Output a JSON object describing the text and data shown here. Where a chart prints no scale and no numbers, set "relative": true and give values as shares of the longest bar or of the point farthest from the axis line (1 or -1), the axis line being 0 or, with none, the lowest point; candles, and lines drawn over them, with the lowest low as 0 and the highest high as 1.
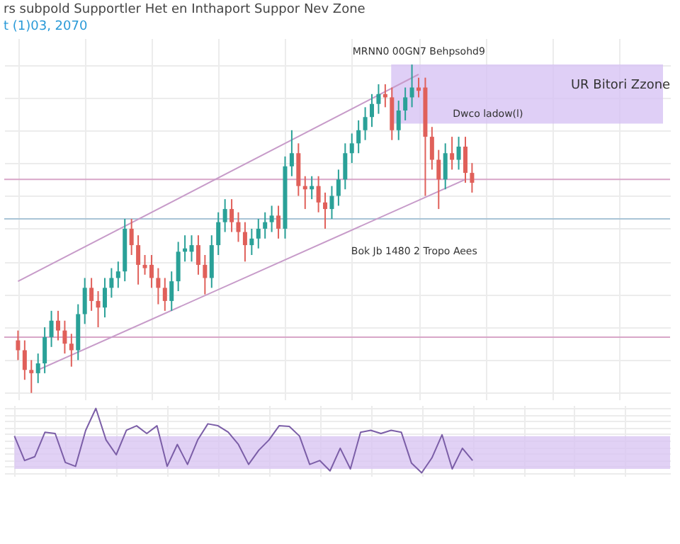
{
  "chart_data": [
    {
      "type": "candlestick",
      "title": "rs subpold Supportler Het en Inthaport Suppor Nev Zone",
      "subtitle": "t (1)03, 2070",
      "relative": true,
      "tick_labels": false,
      "grid": true,
      "categories": [
        null,
        null,
        null,
        null,
        null,
        null,
        null,
        null,
        null,
        null,
        null,
        null,
        null,
        null,
        null,
        null,
        null,
        null,
        null,
        null,
        null,
        null,
        null,
        null,
        null,
        null,
        null,
        null,
        null,
        null,
        null,
        null,
        null,
        null,
        null,
        null,
        null,
        null,
        null,
        null,
        null,
        null,
        null,
        null,
        null,
        null,
        null,
        null,
        null,
        null,
        null,
        null,
        null,
        null,
        null,
        null,
        null,
        null,
        null,
        null,
        null,
        null,
        null,
        null,
        null,
        null,
        null,
        null,
        null
      ],
      "ohlc": [
        [
          0.16,
          0.19,
          0.1,
          0.13
        ],
        [
          0.13,
          0.16,
          0.04,
          0.07
        ],
        [
          0.07,
          0.1,
          0,
          0.06
        ],
        [
          0.06,
          0.12,
          0.03,
          0.09
        ],
        [
          0.09,
          0.2,
          0.06,
          0.17
        ],
        [
          0.17,
          0.25,
          0.14,
          0.22
        ],
        [
          0.22,
          0.25,
          0.16,
          0.19
        ],
        [
          0.19,
          0.22,
          0.12,
          0.15
        ],
        [
          0.15,
          0.18,
          0.08,
          0.13
        ],
        [
          0.13,
          0.27,
          0.1,
          0.24
        ],
        [
          0.24,
          0.35,
          0.21,
          0.32
        ],
        [
          0.32,
          0.35,
          0.25,
          0.28
        ],
        [
          0.28,
          0.31,
          0.2,
          0.26
        ],
        [
          0.26,
          0.35,
          0.23,
          0.32
        ],
        [
          0.32,
          0.38,
          0.29,
          0.35
        ],
        [
          0.35,
          0.4,
          0.32,
          0.37
        ],
        [
          0.37,
          0.53,
          0.34,
          0.5
        ],
        [
          0.5,
          0.53,
          0.42,
          0.45
        ],
        [
          0.45,
          0.48,
          0.33,
          0.39
        ],
        [
          0.39,
          0.42,
          0.36,
          0.38
        ],
        [
          0.39,
          0.42,
          0.32,
          0.35
        ],
        [
          0.35,
          0.38,
          0.27,
          0.32
        ],
        [
          0.32,
          0.35,
          0.25,
          0.28
        ],
        [
          0.28,
          0.37,
          0.25,
          0.34
        ],
        [
          0.34,
          0.46,
          0.31,
          0.43
        ],
        [
          0.43,
          0.48,
          0.4,
          0.44
        ],
        [
          0.43,
          0.48,
          0.4,
          0.45
        ],
        [
          0.45,
          0.48,
          0.36,
          0.39
        ],
        [
          0.39,
          0.42,
          0.3,
          0.35
        ],
        [
          0.35,
          0.48,
          0.32,
          0.45
        ],
        [
          0.45,
          0.55,
          0.42,
          0.52
        ],
        [
          0.52,
          0.59,
          0.49,
          0.56
        ],
        [
          0.56,
          0.59,
          0.49,
          0.52
        ],
        [
          0.52,
          0.55,
          0.46,
          0.49
        ],
        [
          0.49,
          0.52,
          0.4,
          0.45
        ],
        [
          0.45,
          0.5,
          0.42,
          0.47
        ],
        [
          0.47,
          0.53,
          0.44,
          0.5
        ],
        [
          0.5,
          0.55,
          0.47,
          0.52
        ],
        [
          0.52,
          0.57,
          0.49,
          0.54
        ],
        [
          0.54,
          0.57,
          0.47,
          0.5
        ],
        [
          0.5,
          0.72,
          0.47,
          0.69
        ],
        [
          0.69,
          0.8,
          0.66,
          0.73
        ],
        [
          0.73,
          0.76,
          0.6,
          0.63
        ],
        [
          0.63,
          0.66,
          0.56,
          0.62
        ],
        [
          0.62,
          0.66,
          0.59,
          0.63
        ],
        [
          0.63,
          0.66,
          0.55,
          0.58
        ],
        [
          0.58,
          0.61,
          0.5,
          0.56
        ],
        [
          0.56,
          0.63,
          0.53,
          0.6
        ],
        [
          0.6,
          0.68,
          0.57,
          0.65
        ],
        [
          0.65,
          0.76,
          0.62,
          0.73
        ],
        [
          0.73,
          0.79,
          0.7,
          0.76
        ],
        [
          0.76,
          0.83,
          0.73,
          0.8
        ],
        [
          0.8,
          0.87,
          0.77,
          0.84
        ],
        [
          0.84,
          0.91,
          0.81,
          0.88
        ],
        [
          0.88,
          0.94,
          0.85,
          0.91
        ],
        [
          0.91,
          0.94,
          0.87,
          0.9
        ],
        [
          0.9,
          0.93,
          0.77,
          0.8
        ],
        [
          0.8,
          0.89,
          0.77,
          0.86
        ],
        [
          0.86,
          0.93,
          0.83,
          0.9
        ],
        [
          0.9,
          1,
          0.87,
          0.93
        ],
        [
          0.93,
          0.96,
          0.9,
          0.92
        ],
        [
          0.93,
          0.96,
          0.6,
          0.78
        ],
        [
          0.78,
          0.81,
          0.68,
          0.71
        ],
        [
          0.71,
          0.74,
          0.56,
          0.65
        ],
        [
          0.65,
          0.76,
          0.62,
          0.73
        ],
        [
          0.73,
          0.78,
          0.68,
          0.71
        ],
        [
          0.71,
          0.78,
          0.68,
          0.75
        ],
        [
          0.75,
          0.78,
          0.64,
          0.67
        ],
        [
          0.67,
          0.7,
          0.61,
          0.64
        ]
      ],
      "series": [
        {
          "type": "line",
          "color": "#c79bc9",
          "values": [
            0.34,
            null,
            null,
            null,
            null,
            null,
            null,
            null,
            null,
            null,
            null,
            null,
            null,
            null,
            null,
            null,
            null,
            null,
            null,
            null,
            null,
            null,
            null,
            null,
            null,
            null,
            null,
            null,
            null,
            null,
            null,
            null,
            null,
            null,
            null,
            null,
            null,
            null,
            null,
            null,
            null,
            null,
            null,
            null,
            null,
            null,
            null,
            null,
            null,
            null,
            null,
            null,
            null,
            null,
            null,
            null,
            null,
            null,
            null,
            null,
            0.97,
            null,
            null,
            null,
            null,
            null,
            null,
            null,
            null
          ]
        },
        {
          "type": "line",
          "color": "#c79bc9",
          "values": [
            null,
            null,
            null,
            0.07,
            null,
            null,
            null,
            null,
            null,
            null,
            null,
            null,
            null,
            null,
            null,
            null,
            null,
            null,
            null,
            null,
            null,
            null,
            null,
            null,
            null,
            null,
            null,
            null,
            null,
            null,
            null,
            null,
            null,
            null,
            null,
            null,
            null,
            null,
            null,
            null,
            null,
            null,
            null,
            null,
            null,
            null,
            null,
            null,
            null,
            null,
            null,
            null,
            null,
            null,
            null,
            null,
            null,
            null,
            null,
            null,
            null,
            null,
            null,
            null,
            null,
            null,
            null,
            0.65,
            null
          ]
        }
      ],
      "ref_lines": [
        {
          "axis": "y",
          "value": 0.65,
          "color": "#d8a6c8"
        },
        {
          "axis": "y",
          "value": 0.53,
          "color": "#a9c4d6"
        },
        {
          "axis": "y",
          "value": 0.17,
          "color": "#d8a6c8"
        }
      ],
      "bands": [
        {
          "axis": "y",
          "from": 0.82,
          "to": 1,
          "color": "#d7c3f4"
        }
      ],
      "annotations": [
        "MRNN0 00GN7 Behpsohd9",
        "UR Bitori Zzone",
        "Dwco ladow(l)",
        "Bok Jb 1480 2 Tropo Aees"
      ]
    },
    {
      "type": "line",
      "relative": true,
      "tick_labels": false,
      "grid": true,
      "categories": [
        null,
        null,
        null,
        null,
        null,
        null,
        null,
        null,
        null,
        null,
        null,
        null,
        null,
        null,
        null,
        null,
        null,
        null,
        null,
        null,
        null,
        null,
        null,
        null,
        null,
        null,
        null,
        null,
        null,
        null,
        null,
        null,
        null,
        null,
        null,
        null,
        null,
        null,
        null,
        null,
        null,
        null,
        null,
        null,
        null,
        null
      ],
      "series": [
        {
          "color": "#7b5ea7",
          "values": [
            0.57,
            0.19,
            0.25,
            0.63,
            0.61,
            0.16,
            0.1,
            0.66,
            1,
            0.51,
            0.28,
            0.66,
            0.73,
            0.61,
            0.73,
            0.1,
            0.44,
            0.13,
            0.51,
            0.76,
            0.73,
            0.63,
            0.44,
            0.13,
            0.35,
            0.51,
            0.73,
            0.72,
            0.57,
            0.13,
            0.19,
            0.03,
            0.38,
            0.06,
            0.63,
            0.66,
            0.61,
            0.66,
            0.63,
            0.15,
            0,
            0.23,
            0.59,
            0.06,
            0.38,
            0.19
          ]
        }
      ],
      "bands": [
        {
          "axis": "y",
          "from": 0.06,
          "to": 0.57,
          "color": "#d9c6f2"
        }
      ]
    }
  ]
}
